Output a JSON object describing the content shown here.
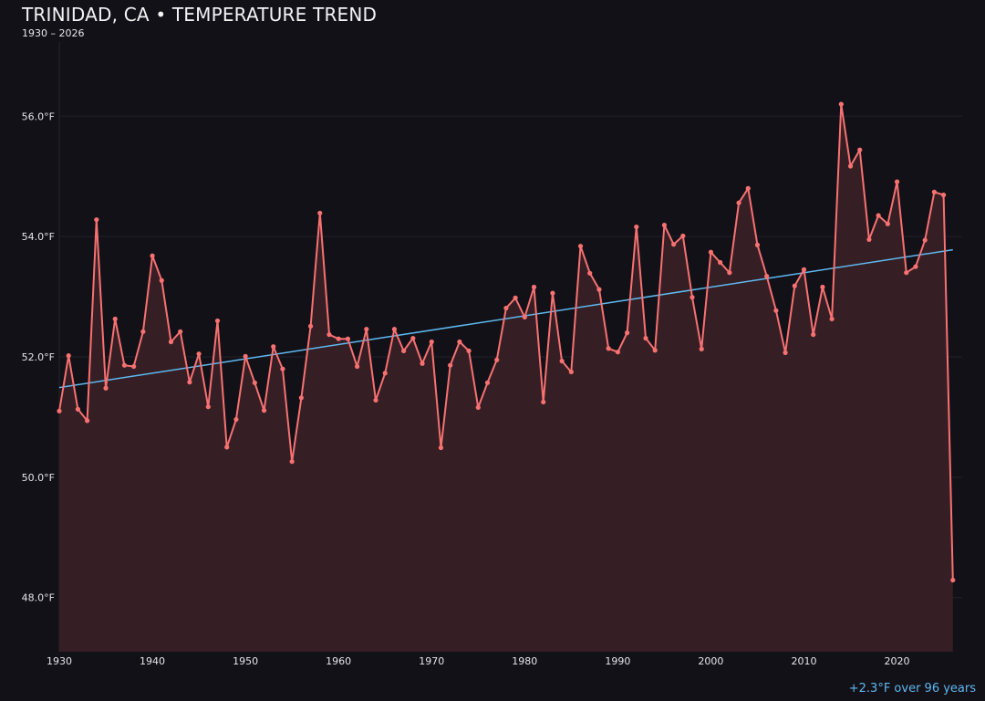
{
  "chart_data": {
    "type": "line",
    "title": "TRINIDAD, CA • TEMPERATURE TREND",
    "subtitle": "1930 – 2026",
    "annotation": "+2.3°F over 96 years",
    "xlabel": "",
    "ylabel": "",
    "xlim": [
      1930,
      2027
    ],
    "ylim": [
      47.1,
      57.4
    ],
    "x_ticks": [
      1930,
      1940,
      1950,
      1960,
      1970,
      1980,
      1990,
      2000,
      2010,
      2020
    ],
    "y_ticks": [
      48.0,
      50.0,
      52.0,
      54.0,
      56.0
    ],
    "y_tick_labels": [
      "48.0°F",
      "50.0°F",
      "52.0°F",
      "54.0°F",
      "56.0°F"
    ],
    "grid": "horizontal",
    "colors": {
      "background": "#121118",
      "line": "#f87171",
      "area": "#351f25",
      "trend": "#5fb8f0"
    },
    "x": [
      1930,
      1931,
      1932,
      1933,
      1934,
      1935,
      1936,
      1937,
      1938,
      1939,
      1940,
      1941,
      1942,
      1943,
      1944,
      1945,
      1946,
      1947,
      1948,
      1949,
      1950,
      1951,
      1952,
      1953,
      1954,
      1955,
      1956,
      1957,
      1958,
      1959,
      1960,
      1961,
      1962,
      1963,
      1964,
      1965,
      1966,
      1967,
      1968,
      1969,
      1970,
      1971,
      1972,
      1973,
      1974,
      1975,
      1976,
      1977,
      1978,
      1979,
      1980,
      1981,
      1982,
      1983,
      1984,
      1985,
      1986,
      1987,
      1988,
      1989,
      1990,
      1991,
      1992,
      1993,
      1994,
      1995,
      1996,
      1997,
      1998,
      1999,
      2000,
      2001,
      2002,
      2003,
      2004,
      2005,
      2006,
      2007,
      2008,
      2009,
      2010,
      2011,
      2012,
      2013,
      2014,
      2015,
      2016,
      2017,
      2018,
      2019,
      2020,
      2021,
      2022,
      2023,
      2024,
      2025,
      2026
    ],
    "series": [
      {
        "values": [
          51.1,
          52.02,
          51.13,
          50.94,
          54.28,
          51.48,
          52.63,
          51.86,
          51.84,
          52.42,
          53.68,
          53.27,
          52.25,
          52.42,
          51.58,
          52.05,
          51.17,
          52.6,
          50.5,
          50.96,
          52.01,
          51.57,
          51.11,
          52.17,
          51.8,
          50.26,
          51.32,
          52.51,
          54.39,
          52.37,
          52.3,
          52.3,
          51.84,
          52.46,
          51.28,
          51.73,
          52.46,
          52.1,
          52.31,
          51.89,
          52.25,
          50.49,
          51.86,
          52.25,
          52.1,
          51.16,
          51.57,
          51.95,
          52.81,
          52.98,
          52.66,
          53.16,
          51.25,
          53.06,
          51.93,
          51.75,
          53.84,
          53.39,
          53.12,
          52.14,
          52.08,
          52.4,
          54.16,
          52.31,
          52.11,
          54.19,
          53.87,
          54.01,
          52.99,
          52.13,
          53.74,
          53.57,
          53.4,
          54.56,
          54.8,
          53.86,
          53.34,
          52.77,
          52.07,
          53.18,
          53.45,
          52.37,
          53.16,
          52.63,
          56.2,
          55.17,
          55.44,
          53.95,
          54.35,
          54.21,
          54.91,
          53.4,
          53.5,
          53.94,
          54.74,
          54.69,
          48.29
        ]
      }
    ],
    "trend": {
      "x": [
        1930,
        2026
      ],
      "y": [
        51.49,
        53.78
      ]
    }
  }
}
